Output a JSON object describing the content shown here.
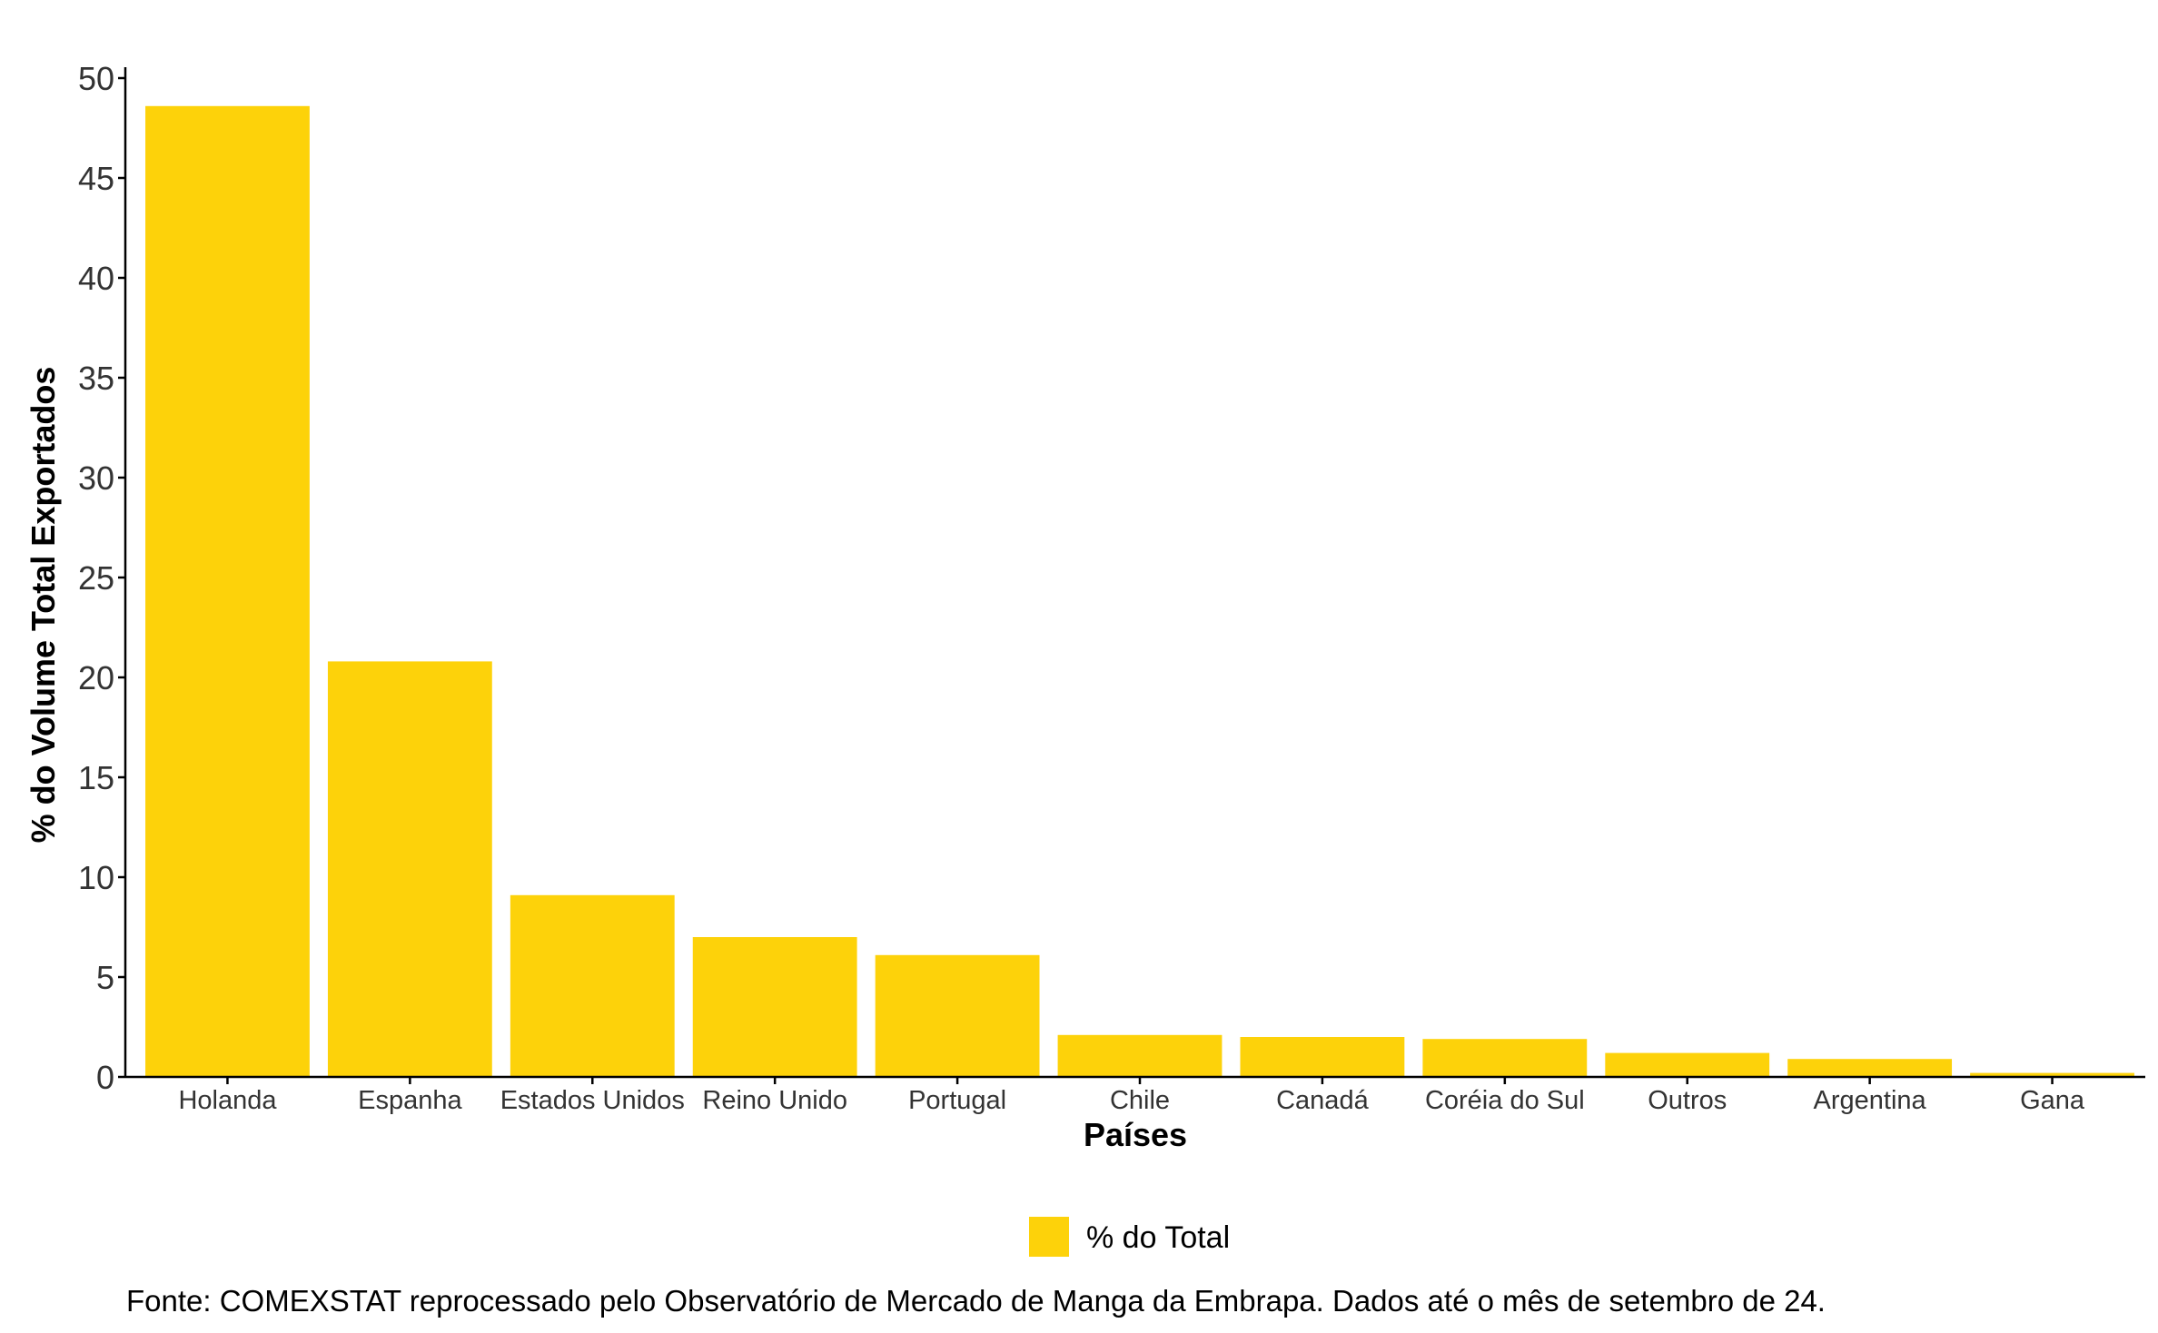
{
  "chart_data": {
    "type": "bar",
    "categories": [
      "Holanda",
      "Espanha",
      "Estados Unidos",
      "Reino Unido",
      "Portugal",
      "Chile",
      "Canadá",
      "Coréia do Sul",
      "Outros",
      "Argentina",
      "Gana"
    ],
    "series": [
      {
        "name": "% do Total",
        "values": [
          48.6,
          20.8,
          9.1,
          7.0,
          6.1,
          2.1,
          2.0,
          1.9,
          1.2,
          0.9,
          0.2
        ],
        "color": "#FDD20A"
      }
    ],
    "xlabel": "Países",
    "ylabel": "% do Volume Total Exportados",
    "ylim": [
      0,
      50
    ],
    "yticks": [
      0,
      5,
      10,
      15,
      20,
      25,
      30,
      35,
      40,
      45,
      50
    ],
    "grid": false,
    "legend_position": "bottom",
    "caption": "Fonte: COMEXSTAT reprocessado pelo Observatório de Mercado de Manga da Embrapa. Dados até o mês de setembro de 24."
  }
}
